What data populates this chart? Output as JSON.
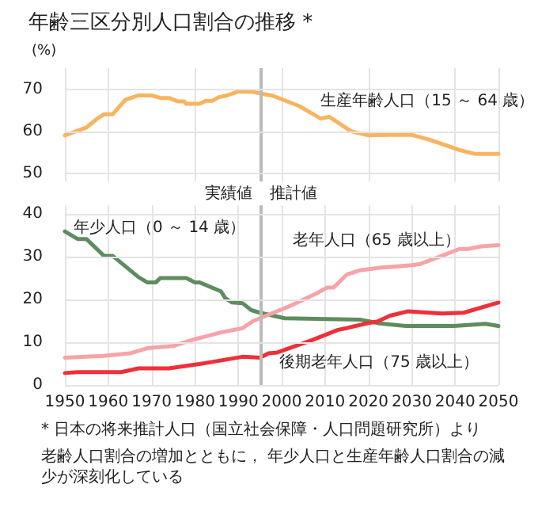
{
  "chart_data": [
    {
      "type": "line",
      "title": "年齢三区分別人口割合の推移 *",
      "ylabel": "(%)",
      "xlim": [
        1950,
        2050
      ],
      "ylim": [
        48,
        75
      ],
      "yticks": [
        50,
        60,
        70
      ],
      "tick_labels": "y",
      "grid": true,
      "legend": false,
      "marker": "none",
      "line_style": "solid",
      "ref_lines": [
        {
          "axis": "x",
          "value": 1995,
          "label": null,
          "color": "#bbbbbb"
        }
      ],
      "series": [
        {
          "name": "生産年齢人口（15 ～ 64 歳）",
          "color": "#f9b460",
          "x": [
            1950,
            1955,
            1957.5,
            1959,
            1961,
            1964,
            1967,
            1970,
            1972,
            1974,
            1976,
            1977.5,
            1978,
            1981,
            1982.5,
            1984,
            1985.5,
            1987,
            1990,
            1993,
            1995,
            1998,
            2004,
            2009,
            2011,
            2016,
            2020,
            2025,
            2030,
            2034,
            2041,
            2044.5,
            2050
          ],
          "values": [
            59.0,
            60.9,
            63.0,
            64.0,
            64.0,
            67.5,
            68.5,
            68.5,
            67.9,
            67.9,
            67.1,
            67.1,
            66.5,
            66.5,
            67.2,
            67.2,
            68.1,
            68.4,
            69.4,
            69.4,
            69.0,
            68.4,
            66.0,
            63.0,
            63.4,
            60.0,
            59.0,
            59.1,
            59.1,
            58.0,
            55.5,
            54.6,
            54.6
          ]
        }
      ]
    },
    {
      "type": "line",
      "xlim": [
        1950,
        2050
      ],
      "ylim": [
        0,
        42
      ],
      "xticks": [
        1950,
        1960,
        1970,
        1980,
        1990,
        2000,
        2010,
        2020,
        2030,
        2040,
        2050
      ],
      "yticks": [
        0,
        10,
        20,
        30,
        40
      ],
      "grid": true,
      "legend": false,
      "marker": "none",
      "line_style": "solid",
      "ref_lines": [
        {
          "axis": "x",
          "value": 1995,
          "label": null,
          "color": "#bbbbbb"
        }
      ],
      "annotations": [
        "実績値",
        "推計値",
        "* 日本の将来推計人口（国立社会保障・人口問題研究所）より",
        "老齢人口割合の増加とともに， 年少人口と生産年齢人口割合の減少が深刻化している"
      ],
      "series": [
        {
          "name": "年少人口（0 ～ 14 歳）",
          "color": "#5e8c5e",
          "x": [
            1950,
            1953,
            1955,
            1959,
            1961,
            1967,
            1969,
            1971,
            1972,
            1978,
            1980,
            1981,
            1986,
            1987,
            1988.5,
            1991,
            1993,
            1995,
            2000.7,
            2018,
            2022.6,
            2028.7,
            2039.7,
            2047,
            2050
          ],
          "values": [
            35.9,
            34.1,
            34.1,
            30.2,
            30.2,
            25.2,
            24.0,
            24.0,
            25.0,
            25.0,
            24.0,
            24.0,
            21.9,
            20.3,
            19.3,
            19.1,
            17.5,
            16.9,
            15.6,
            15.3,
            14.4,
            13.8,
            13.8,
            14.3,
            13.8
          ]
        },
        {
          "name": "老年人口（65 歳以上）",
          "color": "#f7a3a8",
          "x": [
            1950,
            1959,
            1965,
            1969,
            1975,
            1977,
            1980,
            1986,
            1991,
            1993.5,
            1995,
            2002,
            2008,
            2010.5,
            2012,
            2015,
            2018,
            2022.6,
            2030,
            2032,
            2037,
            2041,
            2043,
            2046,
            2050
          ],
          "values": [
            6.4,
            6.8,
            7.4,
            8.6,
            9.1,
            9.8,
            10.7,
            12.3,
            13.3,
            15.0,
            15.6,
            18.5,
            21.4,
            22.8,
            22.8,
            25.8,
            26.8,
            27.4,
            28.0,
            28.3,
            30.2,
            31.8,
            31.8,
            32.4,
            32.7
          ]
        },
        {
          "name": "後期老年人口（75 歳以上）",
          "color": "#ee3038",
          "x": [
            1950,
            1953,
            1963,
            1967,
            1974,
            1981,
            1991,
            1995,
            1997,
            1999,
            2007,
            2013,
            2015,
            2020,
            2022,
            2025,
            2029,
            2037,
            2042,
            2050
          ],
          "values": [
            2.8,
            3.0,
            3.0,
            3.9,
            3.9,
            4.9,
            6.6,
            6.4,
            7.4,
            7.6,
            10.5,
            12.9,
            13.3,
            14.5,
            14.8,
            16.2,
            17.2,
            16.7,
            16.9,
            19.3
          ]
        }
      ]
    }
  ]
}
